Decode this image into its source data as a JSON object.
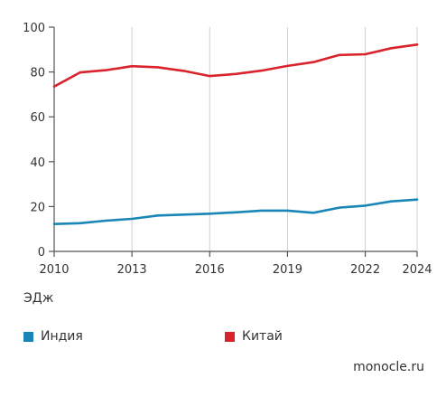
{
  "chart_data": {
    "type": "line",
    "x": [
      2010,
      2011,
      2012,
      2013,
      2014,
      2015,
      2016,
      2017,
      2018,
      2019,
      2020,
      2021,
      2022,
      2023,
      2024
    ],
    "series": [
      {
        "name": "Индия",
        "color": "#1a86b8",
        "values": [
          12.2,
          12.6,
          13.7,
          14.5,
          16.0,
          16.4,
          16.8,
          17.4,
          18.2,
          18.2,
          17.2,
          19.5,
          20.4,
          22.3,
          23.1
        ]
      },
      {
        "name": "Китай",
        "color": "#d9232d",
        "values": [
          73.5,
          79.8,
          80.8,
          82.6,
          82.1,
          80.5,
          78.2,
          79.1,
          80.6,
          82.7,
          84.4,
          87.6,
          87.9,
          90.6,
          92.2
        ]
      }
    ],
    "xticks": [
      "2010",
      "2013",
      "2016",
      "2019",
      "2022",
      "2024"
    ],
    "yticks": [
      "0",
      "20",
      "40",
      "60",
      "80",
      "100"
    ],
    "ylim": [
      0,
      100
    ],
    "xlim": [
      2010,
      2024
    ],
    "grid": "vertical",
    "ylabel": "ЭДж",
    "legend": "bottom"
  },
  "legend": {
    "india": {
      "label": "Индия",
      "color": "#1a86b8"
    },
    "china": {
      "label": "Китай",
      "color": "#d9232d"
    }
  },
  "source": "monocle.ru"
}
